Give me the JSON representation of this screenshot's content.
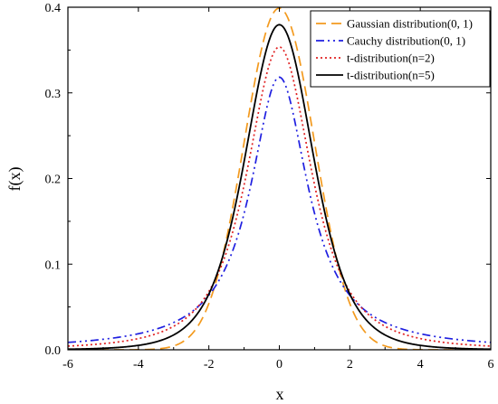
{
  "chart_data": {
    "type": "line",
    "xlabel": "x",
    "ylabel": "f(x)",
    "xlim": [
      -6,
      6
    ],
    "ylim": [
      0,
      0.4
    ],
    "x_ticks": [
      "-6",
      "-4",
      "-2",
      "0",
      "2",
      "4",
      "6"
    ],
    "y_ticks": [
      "0.0",
      "0.1",
      "0.2",
      "0.3",
      "0.4"
    ],
    "grid": false,
    "legend_position": "top-right",
    "x": [
      -6,
      -5,
      -4,
      -3.5,
      -3,
      -2.5,
      -2,
      -1.5,
      -1,
      -0.5,
      0,
      0.5,
      1,
      1.5,
      2,
      2.5,
      3,
      3.5,
      4,
      5,
      6
    ],
    "series": [
      {
        "name": "Gaussian distribution(0, 1)",
        "color": "#F39A1E",
        "dash": "long-dash",
        "values": [
          0.0,
          0.0,
          0.0001,
          0.0009,
          0.0044,
          0.0175,
          0.054,
          0.1295,
          0.242,
          0.3521,
          0.3989,
          0.3521,
          0.242,
          0.1295,
          0.054,
          0.0175,
          0.0044,
          0.0009,
          0.0001,
          0.0,
          0.0
        ]
      },
      {
        "name": "Cauchy distribution(0, 1)",
        "color": "#1F1FE0",
        "dash": "dash-dot-dot",
        "values": [
          0.0086,
          0.0122,
          0.0187,
          0.024,
          0.0318,
          0.0439,
          0.0637,
          0.0979,
          0.1592,
          0.2546,
          0.3183,
          0.2546,
          0.1592,
          0.0979,
          0.0637,
          0.0439,
          0.0318,
          0.024,
          0.0187,
          0.0122,
          0.0086
        ]
      },
      {
        "name": "t-distribution(n=2)",
        "color": "#E02020",
        "dash": "dotted",
        "values": [
          0.0042,
          0.0071,
          0.0131,
          0.019,
          0.0275,
          0.0422,
          0.068,
          0.1144,
          0.1925,
          0.2962,
          0.3536,
          0.2962,
          0.1925,
          0.1144,
          0.068,
          0.0422,
          0.0275,
          0.019,
          0.0131,
          0.0071,
          0.0042
        ]
      },
      {
        "name": "t-distribution(n=5)",
        "color": "#000000",
        "dash": "solid",
        "values": [
          0.0018,
          0.0018,
          0.0051,
          0.0085,
          0.0173,
          0.0329,
          0.0651,
          0.1245,
          0.2197,
          0.3279,
          0.3796,
          0.3279,
          0.2197,
          0.1245,
          0.0651,
          0.0329,
          0.0173,
          0.0085,
          0.0051,
          0.0018,
          0.0018
        ]
      }
    ]
  }
}
